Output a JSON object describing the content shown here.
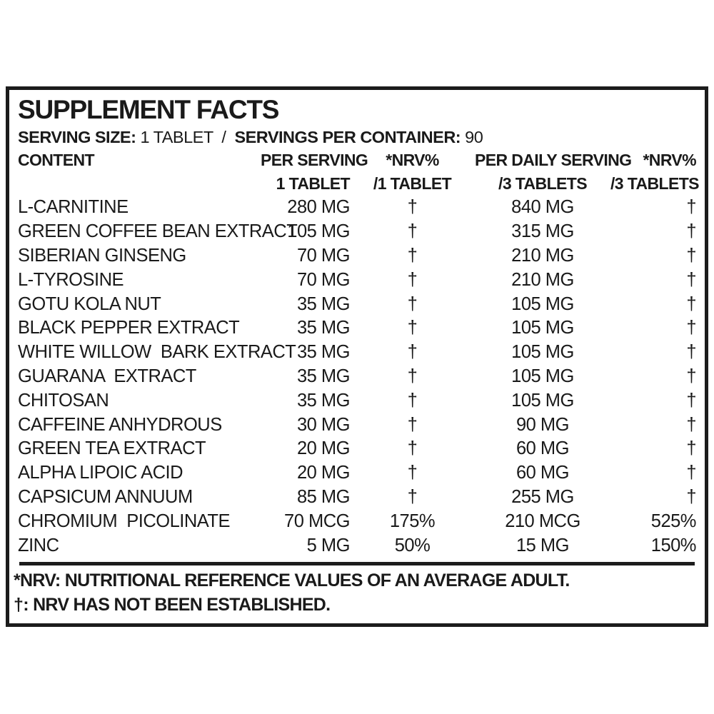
{
  "label": {
    "title": "SUPPLEMENT FACTS",
    "serving": {
      "size_label": "SERVING SIZE:",
      "size_value": "1 TABLET",
      "separator": "/",
      "container_label": "SERVINGS PER CONTAINER:",
      "container_value": "90"
    },
    "columns": {
      "content": "CONTENT",
      "per_serving": "PER SERVING",
      "per_serving_sub": "1 TABLET",
      "nrv_per_tablet": "*NRV%",
      "nrv_per_tablet_sub": "/1 TABLET",
      "per_daily_serving": "PER DAILY SERVING",
      "per_daily_serving_sub": "/3 TABLETS",
      "nrv_per_daily": "*NRV%",
      "nrv_per_daily_sub": "/3 TABLETS"
    },
    "nrv_not_established_symbol": "†",
    "rows": [
      {
        "name": "L-CARNITINE",
        "per_serving": "280 MG",
        "nrv1": "†",
        "daily": "840 MG",
        "nrv3": "†"
      },
      {
        "name": "GREEN COFFEE BEAN EXTRACT",
        "per_serving": "105 MG",
        "nrv1": "†",
        "daily": "315 MG",
        "nrv3": "†"
      },
      {
        "name": "SIBERIAN GINSENG",
        "per_serving": "70 MG",
        "nrv1": "†",
        "daily": "210 MG",
        "nrv3": "†"
      },
      {
        "name": "L-TYROSINE",
        "per_serving": "70 MG",
        "nrv1": "†",
        "daily": "210 MG",
        "nrv3": "†"
      },
      {
        "name": "GOTU KOLA NUT",
        "per_serving": "35 MG",
        "nrv1": "†",
        "daily": "105 MG",
        "nrv3": "†"
      },
      {
        "name": "BLACK PEPPER EXTRACT",
        "per_serving": "35 MG",
        "nrv1": "†",
        "daily": "105 MG",
        "nrv3": "†"
      },
      {
        "name": "WHITE WILLOW  BARK EXTRACT",
        "per_serving": "35 MG",
        "nrv1": "†",
        "daily": "105 MG",
        "nrv3": "†"
      },
      {
        "name": "GUARANA  EXTRACT",
        "per_serving": "35 MG",
        "nrv1": "†",
        "daily": "105 MG",
        "nrv3": "†"
      },
      {
        "name": "CHITOSAN",
        "per_serving": "35 MG",
        "nrv1": "†",
        "daily": "105 MG",
        "nrv3": "†"
      },
      {
        "name": "CAFFEINE ANHYDROUS",
        "per_serving": "30 MG",
        "nrv1": "†",
        "daily": "90 MG",
        "nrv3": "†"
      },
      {
        "name": "GREEN TEA EXTRACT",
        "per_serving": "20 MG",
        "nrv1": "†",
        "daily": "60 MG",
        "nrv3": "†"
      },
      {
        "name": "ALPHA LIPOIC ACID",
        "per_serving": "20 MG",
        "nrv1": "†",
        "daily": "60 MG",
        "nrv3": "†"
      },
      {
        "name": "CAPSICUM ANNUUM",
        "per_serving": "85 MG",
        "nrv1": "†",
        "daily": "255 MG",
        "nrv3": "†"
      },
      {
        "name": "CHROMIUM  PICOLINATE",
        "per_serving": "70 MCG",
        "nrv1": "175%",
        "daily": "210 MCG",
        "nrv3": "525%"
      },
      {
        "name": "ZINC",
        "per_serving": "5 MG",
        "nrv1": "50%",
        "daily": "15 MG",
        "nrv3": "150%"
      }
    ],
    "footnotes": [
      "*NRV: NUTRITIONAL REFERENCE VALUES OF AN AVERAGE ADULT.",
      "†: NRV HAS NOT BEEN ESTABLISHED."
    ],
    "colors": {
      "ink": "#1c1c1c",
      "background": "#ffffff"
    }
  }
}
